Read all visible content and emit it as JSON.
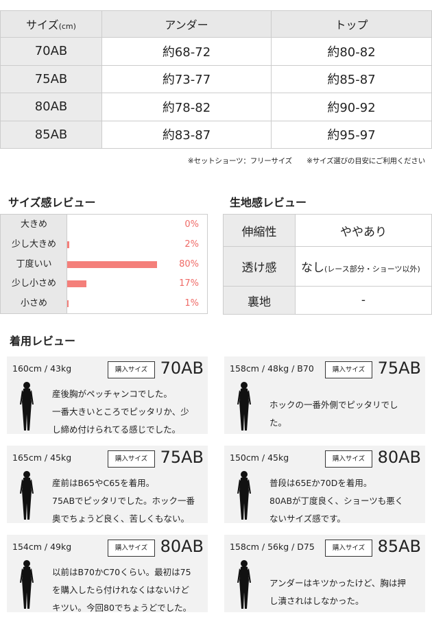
{
  "size_table": {
    "header": [
      "サイズ",
      "(cm)",
      "アンダー",
      "トップ"
    ],
    "rows": [
      [
        "70AB",
        "約68-72",
        "約80-82"
      ],
      [
        "75AB",
        "約73-77",
        "約85-87"
      ],
      [
        "80AB",
        "約78-82",
        "約90-92"
      ],
      [
        "85AB",
        "約83-87",
        "約95-97"
      ]
    ]
  },
  "note": "※セットショーツ：フリーサイズ ※サイズ選びの目安にご利用ください",
  "fit_review": {
    "title": "サイズ感レビュー",
    "bar_color": "#f47f7a",
    "items": [
      {
        "label": "大きめ",
        "percent": 0,
        "text": "0%"
      },
      {
        "label": "少し大きめ",
        "percent": 2,
        "text": "2%"
      },
      {
        "label": "丁度いい",
        "percent": 80,
        "text": "80%"
      },
      {
        "label": "少し小さめ",
        "percent": 17,
        "text": "17%"
      },
      {
        "label": "小さめ",
        "percent": 1,
        "text": "1%"
      }
    ]
  },
  "fabric_review": {
    "title": "生地感レビュー",
    "rows": [
      {
        "label": "伸縮性",
        "value": "ややあり",
        "note": ""
      },
      {
        "label": "透け感",
        "value": "なし",
        "note": "(レース部分・ショーツ以外)"
      },
      {
        "label": "裏地",
        "value": "-",
        "note": ""
      }
    ]
  },
  "wear_review": {
    "title": "着用レビュー",
    "buy_label": "購入サイズ",
    "cards": [
      {
        "measure": "160cm / 43kg",
        "size": "70AB",
        "lines": [
          "産後胸がペッチャンコでした。",
          "一番大きいところでピッタリか、少",
          "し締め付けられてる感じでした。"
        ]
      },
      {
        "measure": "158cm / 48kg / B70",
        "size": "75AB",
        "lines": [
          "ホックの一番外側でピッタリでし",
          "た。"
        ]
      },
      {
        "measure": "165cm / 45kg",
        "size": "75AB",
        "lines": [
          "産前はB65やC65を着用。",
          "75ABでピッタリでした。ホック一番",
          "奥でちょうど良く、苦しくもない。"
        ]
      },
      {
        "measure": "150cm / 45kg",
        "size": "80AB",
        "lines": [
          "普段は65Eか70Dを着用。",
          "80ABが丁度良く、ショーツも悪く",
          "ないサイズ感です。"
        ]
      },
      {
        "measure": "154cm / 49kg",
        "size": "80AB",
        "lines": [
          "以前はB70かC70くらい。最初は75",
          "を購入したら付けれなくはないけど",
          "キツい。今回80でちょうどでした。"
        ]
      },
      {
        "measure": "158cm / 56kg / D75",
        "size": "85AB",
        "lines": [
          "アンダーはキツかったけど、胸は押",
          "し潰されはしなかった。"
        ]
      }
    ]
  }
}
